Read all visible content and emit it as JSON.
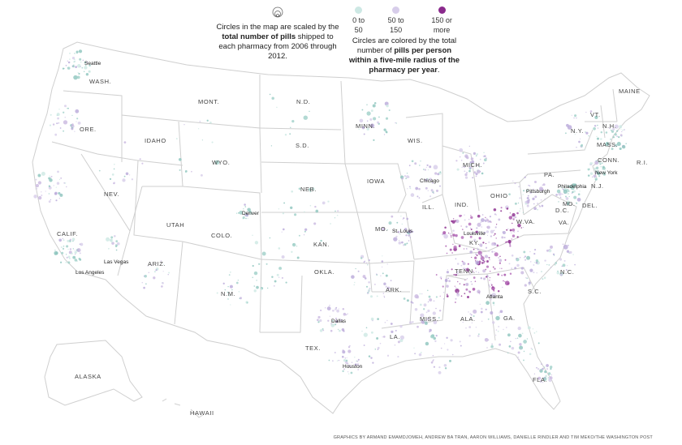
{
  "legend": {
    "size_title_pre": "Circles in the map are scaled by the",
    "size_title_bold": "total number of pills",
    "size_title_post": "shipped to each pharmacy from 2006 through 2012.",
    "color_bins": [
      {
        "label": "0 to 50",
        "color": "#cde8e4"
      },
      {
        "label": "50 to 150",
        "color": "#d7cdea"
      },
      {
        "label": "150 or more",
        "color": "#8a2a8c"
      }
    ],
    "color_title_pre": "Circles are colored by the total number of",
    "color_title_bold": "pills per person within a five-mile radius of the pharmacy per year",
    "color_title_post": "."
  },
  "states": [
    "WASH.",
    "ORE.",
    "CALIF.",
    "NEV.",
    "IDAHO",
    "MONT.",
    "WYO.",
    "UTAH",
    "ARIZ.",
    "COLO.",
    "N.M.",
    "N.D.",
    "S.D.",
    "NEB.",
    "KAN.",
    "OKLA.",
    "TEX.",
    "MINN.",
    "IOWA",
    "MO.",
    "ARK.",
    "LA.",
    "WIS.",
    "ILL.",
    "MISS.",
    "ALA.",
    "MICH.",
    "IND.",
    "OHIO",
    "KY.",
    "TENN.",
    "GA.",
    "FLA.",
    "S.C.",
    "N.C.",
    "VA.",
    "W.VA.",
    "PA.",
    "N.Y.",
    "VT.",
    "N.H.",
    "MAINE",
    "MASS.",
    "CONN.",
    "R.I.",
    "N.J.",
    "DEL.",
    "MD.",
    "D.C.",
    "ALASKA",
    "HAWAII"
  ],
  "cities": [
    "Seattle",
    "Denver",
    "Las Vegas",
    "Los Angeles",
    "Dallas",
    "Houston",
    "Chicago",
    "St. Louis",
    "Louisville",
    "Atlanta",
    "Pittsburgh",
    "Philadelphia",
    "New York"
  ],
  "colors": {
    "low": "#9fcfc8",
    "mid": "#b9a9d9",
    "high": "#8a2a8c",
    "outline": "#cfcfcf"
  },
  "credit": "GRAPHICS BY ARMAND EMAMDJOMEH, ANDREW BA TRAN, AARON WILLIAMS, DANIELLE RINDLER AND TIM MEKO/THE WASHINGTON POST"
}
